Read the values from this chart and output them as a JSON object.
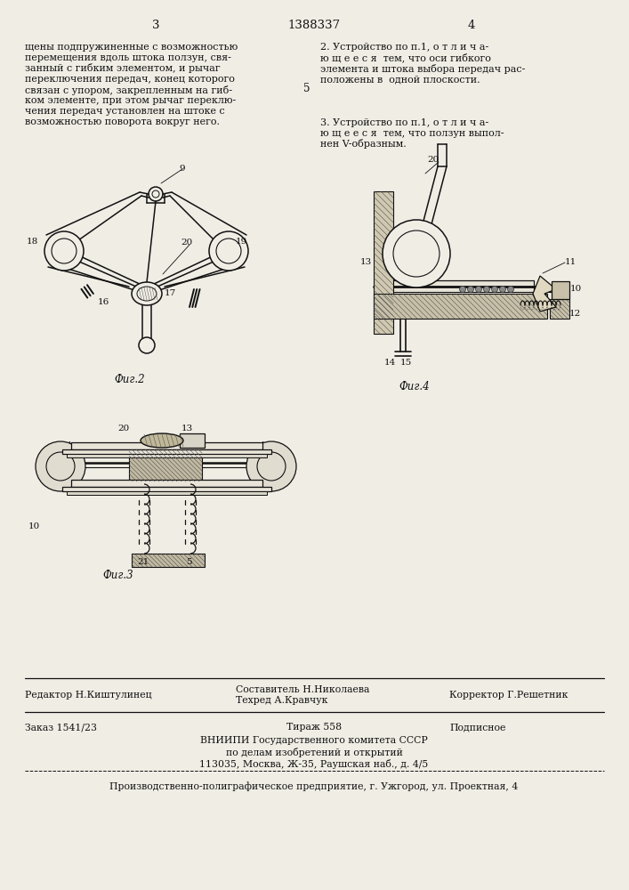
{
  "page_color": "#f0ede5",
  "text_color": "#1a1a1a",
  "header_page_left": "3",
  "header_center": "1388337",
  "header_page_right": "4",
  "col_left_text": "щены подпружиненные с возможностью\nперемещения вдоль штока ползун, свя-\nзанный с гибким элементом, и рычаг\nпереключения передач, конец которого\nсвязан с упором, закрепленным на гиб-\nком элементе, при этом рычаг переклю-\nчения передач установлен на штоке с\nвозможностью поворота вокруг него.",
  "col_right_text_1": "2. Устройство по п.1, о т л и ч а-\nю щ е е с я  тем, что оси гибкого\nэлемента и штока выбора передач рас-\nположены в  одной плоскости.",
  "col_right_text_2": "3. Устройство по п.1, о т л и ч а-\nю щ е е с я  тем, что ползун выпол-\nнен V-образным.",
  "number_5": "5",
  "fig2_label": "Фиг.2",
  "fig3_label": "Фиг.3",
  "fig4_label": "Фиг.4",
  "footer_line1_left": "Редактор Н.Киштулинец",
  "footer_line1_mid": "Составитель Н.Николаева\nТехред А.Кравчук",
  "footer_line1_right": "Корректор Г.Решетник",
  "footer_line2_left": "Заказ 1541/23",
  "footer_line2_mid": "Тираж 558",
  "footer_line2_right": "Подписное",
  "footer_vniipi": "ВНИИПИ Государственного комитета СССР",
  "footer_vniipi2": "по делам изобретений и открытий",
  "footer_vniipi3": "113035, Москва, Ж-35, Раушская наб., д. 4/5",
  "footer_last": "Производственно-полиграфическое предприятие, г. Ужгород, ул. Проектная, 4"
}
